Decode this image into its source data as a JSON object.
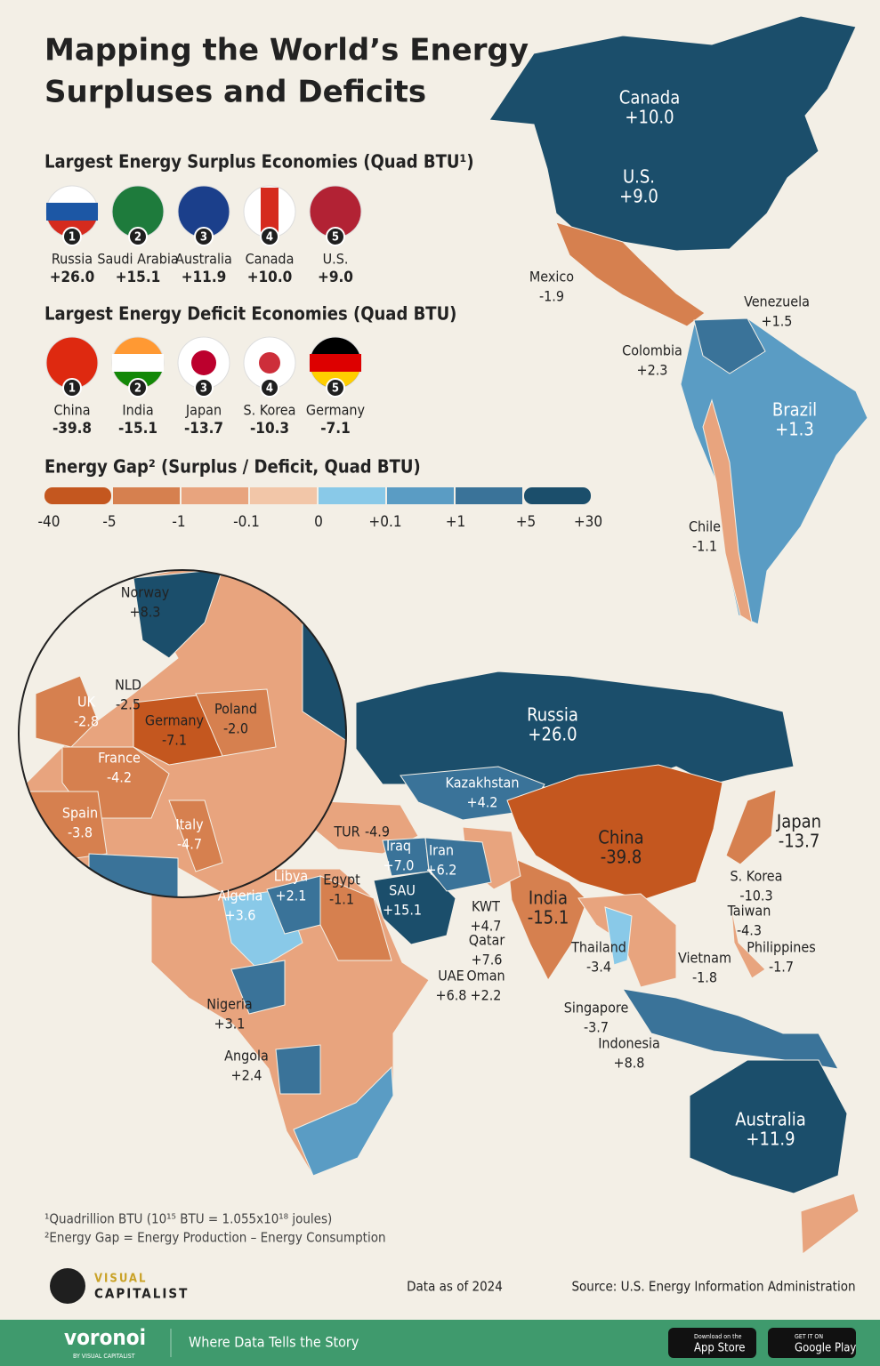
{
  "header": {
    "title": [
      "Mapping the World’s Energy",
      "Surpluses and Deficits"
    ]
  },
  "surplus": {
    "heading": "Largest Energy Surplus Economies (Quad BTU¹)",
    "items": [
      {
        "rank": "1",
        "name": "Russia",
        "value": "+26.0"
      },
      {
        "rank": "2",
        "name": "Saudi Arabia",
        "value": "+15.1"
      },
      {
        "rank": "3",
        "name": "Australia",
        "value": "+11.9"
      },
      {
        "rank": "4",
        "name": "Canada",
        "value": "+10.0"
      },
      {
        "rank": "5",
        "name": "U.S.",
        "value": "+9.0"
      }
    ]
  },
  "deficit": {
    "heading": "Largest Energy Deficit Economies (Quad BTU)",
    "items": [
      {
        "rank": "1",
        "name": "China",
        "value": "-39.8"
      },
      {
        "rank": "2",
        "name": "India",
        "value": "-15.1"
      },
      {
        "rank": "3",
        "name": "Japan",
        "value": "-13.7"
      },
      {
        "rank": "4",
        "name": "S. Korea",
        "value": "-10.3"
      },
      {
        "rank": "5",
        "name": "Germany",
        "value": "-7.1"
      }
    ]
  },
  "legend": {
    "heading": "Energy Gap² (Surplus / Deficit, Quad BTU)",
    "ticks": [
      "-40",
      "-5",
      "-1",
      "-0.1",
      "0",
      "+0.1",
      "+1",
      "+5",
      "+30"
    ]
  },
  "map_labels": [
    {
      "name": "Canada",
      "value": "+10.0"
    },
    {
      "name": "U.S.",
      "value": "+9.0"
    },
    {
      "name": "Mexico",
      "value": "-1.9"
    },
    {
      "name": "Venezuela",
      "value": "+1.5"
    },
    {
      "name": "Colombia",
      "value": "+2.3"
    },
    {
      "name": "Brazil",
      "value": "+1.3"
    },
    {
      "name": "Chile",
      "value": "-1.1"
    },
    {
      "name": "Norway",
      "value": "+8.3"
    },
    {
      "name": "NLD",
      "value": "-2.5"
    },
    {
      "name": "UK",
      "value": "-2.8"
    },
    {
      "name": "Germany",
      "value": "-7.1"
    },
    {
      "name": "Poland",
      "value": "-2.0"
    },
    {
      "name": "France",
      "value": "-4.2"
    },
    {
      "name": "Spain",
      "value": "-3.8"
    },
    {
      "name": "Italy",
      "value": "-4.7"
    },
    {
      "name": "Russia",
      "value": "+26.0"
    },
    {
      "name": "Kazakhstan",
      "value": "+4.2"
    },
    {
      "name": "TUR",
      "value": "-4.9"
    },
    {
      "name": "China",
      "value": "-39.8"
    },
    {
      "name": "Japan",
      "value": "-13.7"
    },
    {
      "name": "Iraq",
      "value": "+7.0"
    },
    {
      "name": "Iran",
      "value": "+6.2"
    },
    {
      "name": "Libya",
      "value": "+2.1"
    },
    {
      "name": "Egypt",
      "value": "-1.1"
    },
    {
      "name": "Algeria",
      "value": "+3.6"
    },
    {
      "name": "SAU",
      "value": "+15.1"
    },
    {
      "name": "KWT",
      "value": "+4.7"
    },
    {
      "name": "India",
      "value": "-15.1"
    },
    {
      "name": "S. Korea",
      "value": "-10.3"
    },
    {
      "name": "Taiwan",
      "value": "-4.3"
    },
    {
      "name": "Qatar",
      "value": "+7.6"
    },
    {
      "name": "Thailand",
      "value": "-3.4"
    },
    {
      "name": "Vietnam",
      "value": "-1.8"
    },
    {
      "name": "Philippines",
      "value": "-1.7"
    },
    {
      "name": "UAE",
      "value": "+6.8"
    },
    {
      "name": "Oman",
      "value": "+2.2"
    },
    {
      "name": "Nigeria",
      "value": "+3.1"
    },
    {
      "name": "Singapore",
      "value": "-3.7"
    },
    {
      "name": "Indonesia",
      "value": "+8.8"
    },
    {
      "name": "Angola",
      "value": "+2.4"
    },
    {
      "name": "Australia",
      "value": "+11.9"
    }
  ],
  "footnotes": [
    "¹Quadrillion BTU (10¹⁵ BTU = 1.055x10¹⁸ joules)",
    "²Energy Gap = Energy Production – Energy Consumption"
  ],
  "footer": {
    "brand": [
      "VISUAL",
      "CAPITALIST"
    ],
    "data_as_of": "Data as of 2024",
    "source": "Source: U.S. Energy Information Administration"
  },
  "bottom_bar": {
    "brand": "voronoi",
    "brand_sub": "BY VISUAL CAPITALIST",
    "tagline": "Where Data Tells the Story",
    "app_store": [
      "Download on the",
      "App Store"
    ],
    "google_play": [
      "GET IT ON",
      "Google Play"
    ]
  }
}
